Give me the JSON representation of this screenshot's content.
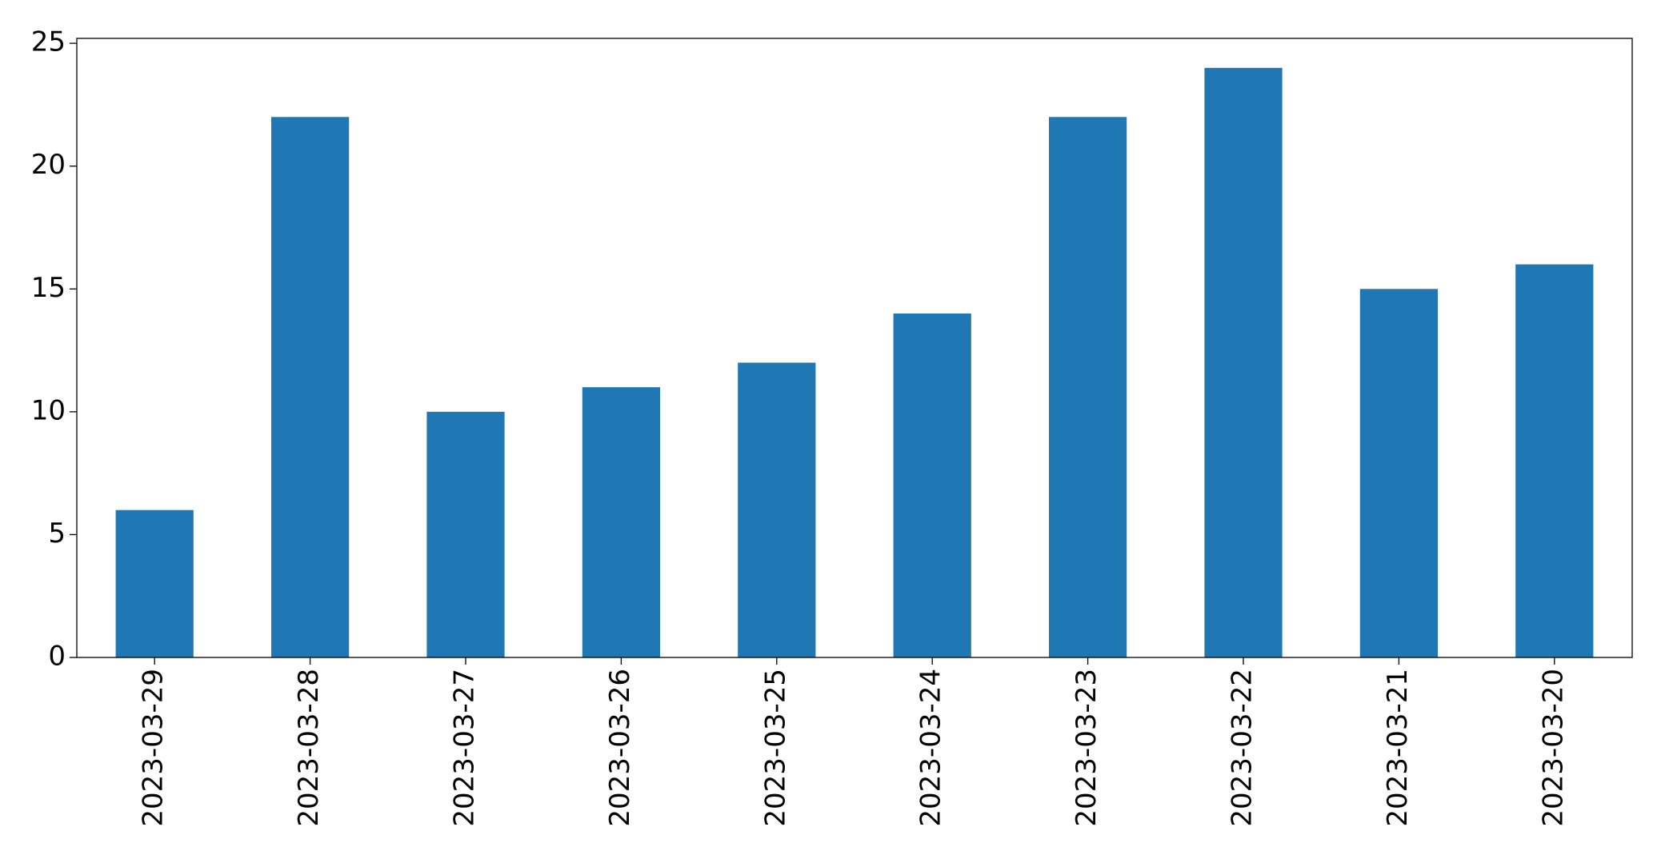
{
  "chart_data": {
    "type": "bar",
    "categories": [
      "2023-03-29",
      "2023-03-28",
      "2023-03-27",
      "2023-03-26",
      "2023-03-25",
      "2023-03-24",
      "2023-03-23",
      "2023-03-22",
      "2023-03-21",
      "2023-03-20"
    ],
    "values": [
      6,
      22,
      10,
      11,
      12,
      14,
      22,
      24,
      15,
      16
    ],
    "color": "#1f77b4",
    "ylim": [
      0,
      25.2
    ],
    "yticks": [
      0,
      5,
      10,
      15,
      20,
      25
    ],
    "grid": false
  }
}
